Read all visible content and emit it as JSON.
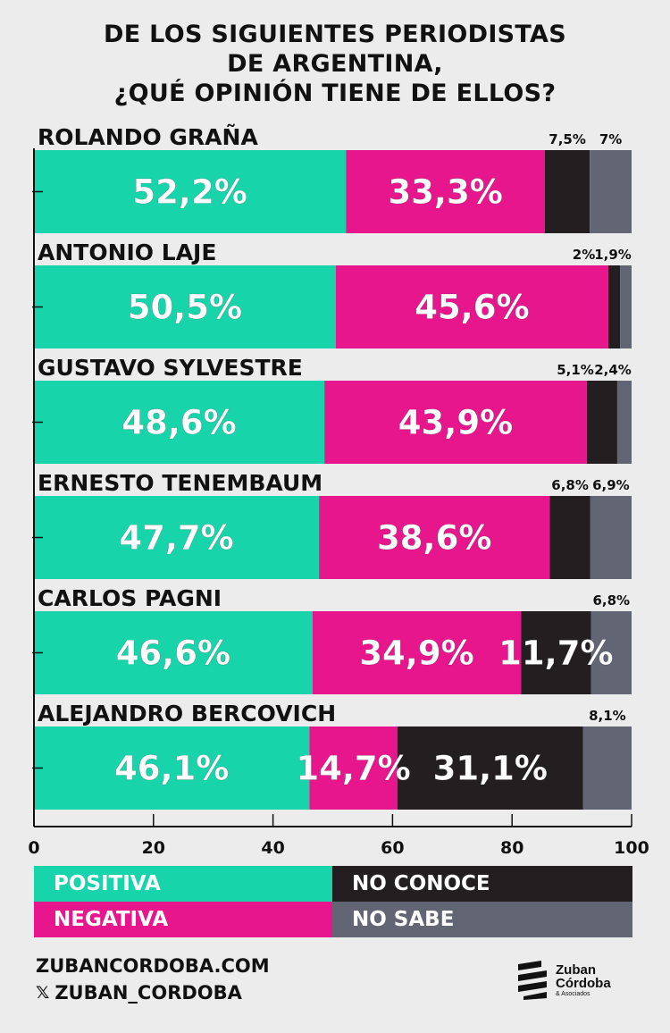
{
  "chart_data": {
    "type": "bar",
    "stacked": true,
    "orientation": "horizontal",
    "title_lines": [
      "DE LOS SIGUIENTES PERIODISTAS",
      "DE ARGENTINA,",
      "¿QUÉ OPINIÓN TIENE DE ELLOS?"
    ],
    "categories": [
      "ROLANDO GRAÑA",
      "ANTONIO LAJE",
      "GUSTAVO SYLVESTRE",
      "ERNESTO TENEMBAUM",
      "CARLOS PAGNI",
      "ALEJANDRO BERCOVICH"
    ],
    "series": [
      {
        "name": "POSITIVA",
        "color": "#17d4ab",
        "values": [
          52.2,
          50.5,
          48.6,
          47.7,
          46.6,
          46.1
        ],
        "labels": [
          "52,2%",
          "50,5%",
          "48,6%",
          "47,7%",
          "46,6%",
          "46,1%"
        ]
      },
      {
        "name": "NEGATIVA",
        "color": "#e8168c",
        "values": [
          33.3,
          45.6,
          43.9,
          38.6,
          34.9,
          14.7
        ],
        "labels": [
          "33,3%",
          "45,6%",
          "43,9%",
          "38,6%",
          "34,9%",
          "14,7%"
        ]
      },
      {
        "name": "NO CONOCE",
        "color": "#231f20",
        "values": [
          7.5,
          2,
          5.1,
          6.8,
          11.7,
          31.1
        ],
        "labels": [
          "7,5%",
          "2%",
          "5,1%",
          "6,8%",
          "11,7%",
          "31,1%"
        ]
      },
      {
        "name": "NO SABE",
        "color": "#626674",
        "values": [
          7,
          1.9,
          2.4,
          6.9,
          6.8,
          8.1
        ],
        "labels": [
          "7%",
          "1,9%",
          "2,4%",
          "6,9%",
          "6,8%",
          "8,1%"
        ]
      }
    ],
    "xlim": [
      0,
      100
    ],
    "xticks": [
      0,
      20,
      40,
      60,
      80,
      100
    ],
    "xtick_labels": [
      "0",
      "20",
      "40",
      "60",
      "80",
      "100"
    ],
    "legend_position": "bottom"
  },
  "legend": {
    "positiva": "POSITIVA",
    "negativa": "NEGATIVA",
    "no_conoce": "NO CONOCE",
    "no_sabe": "NO SABE"
  },
  "footer": {
    "website": "ZUBANCORDOBA.COM",
    "handle": "ZUBAN_CORDOBA",
    "logo_line1": "Zuban",
    "logo_line2": "Córdoba",
    "logo_line3": "& Asociados"
  },
  "colors": {
    "positiva": "#17d4ab",
    "negativa": "#e8168c",
    "no_conoce": "#231f20",
    "no_sabe": "#626674",
    "background": "#ececec"
  }
}
